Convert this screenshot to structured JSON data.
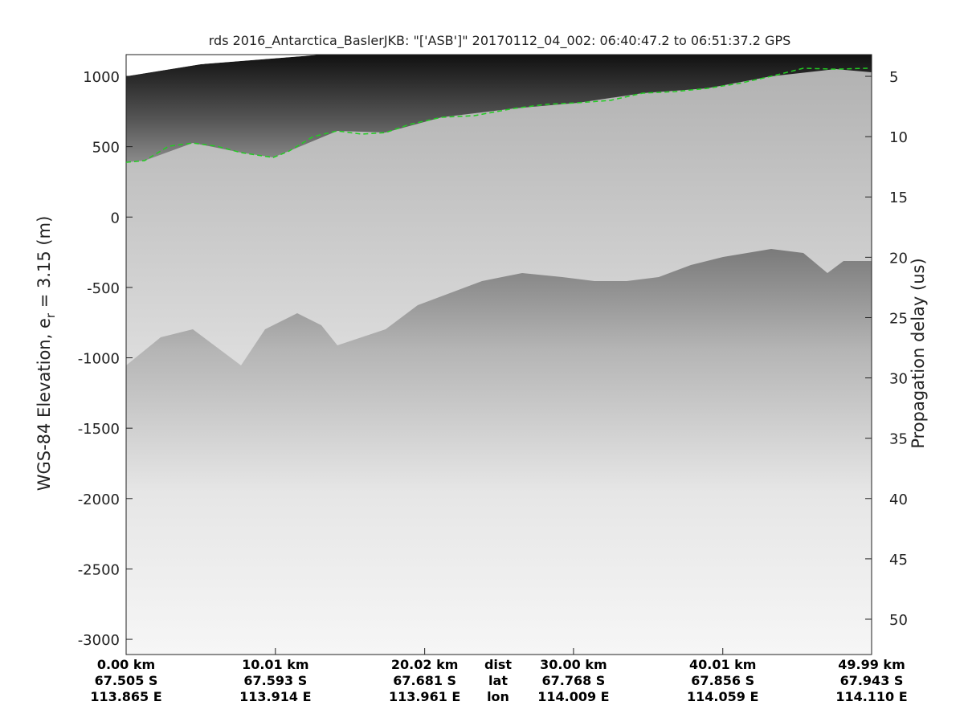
{
  "chart_data": {
    "type": "echogram",
    "title": "rds 2016_Antarctica_BaslerJKB: \"['ASB']\"  20170112_04_002: 06:40:47.2 to 06:51:37.2 GPS",
    "ylabel": [
      "WGS-84 Elevation, e",
      "r",
      " = 3.15 (m)"
    ],
    "y2label": "Propagation delay (us)",
    "xlim": [
      0,
      49.99
    ],
    "xticks": [
      {
        "value": 0,
        "label": "0.00 km"
      },
      {
        "value": 10.01,
        "label": "10.01 km"
      },
      {
        "value": 20.02,
        "label": "20.02 km"
      },
      {
        "value": 30.0,
        "label": "30.00 km"
      },
      {
        "value": 40.01,
        "label": "40.01 km"
      },
      {
        "value": 49.99,
        "label": "49.99 km"
      }
    ],
    "lat_labels": [
      "67.505 S",
      "67.593 S",
      "67.681 S",
      "67.768 S",
      "67.856 S",
      "67.943 S"
    ],
    "lon_labels": [
      "113.865 E",
      "113.914 E",
      "113.961 E",
      "114.009 E",
      "114.059 E",
      "114.110 E"
    ],
    "row_names": [
      "dist",
      "lat",
      "lon"
    ],
    "ylim": [
      -3108,
      1154
    ],
    "yticks": [
      1000,
      500,
      0,
      -500,
      -1000,
      -1500,
      -2000,
      -2500,
      -3000
    ],
    "y2lim": [
      52.93,
      3.2
    ],
    "y2ticks": [
      5,
      10,
      15,
      20,
      25,
      30,
      35,
      40,
      45,
      50
    ],
    "series": [
      {
        "color": "#22cc22",
        "x": [
          0,
          1.24,
          2.86,
          4.47,
          6.09,
          7.7,
          9.86,
          10.93,
          12.55,
          14.17,
          15.78,
          17.4,
          19.01,
          21.17,
          23.32,
          26.01,
          28.17,
          30.32,
          32.48,
          34.63,
          36.79,
          38.94,
          41.1,
          43.25,
          45.41,
          47.56,
          49.72
        ],
        "values": [
          389,
          401,
          503,
          526,
          503,
          458,
          423,
          469,
          572,
          612,
          589,
          600,
          658,
          709,
          720,
          772,
          800,
          812,
          829,
          880,
          891,
          914,
          949,
          1000,
          1057,
          1051,
          1057
        ]
      }
    ]
  }
}
